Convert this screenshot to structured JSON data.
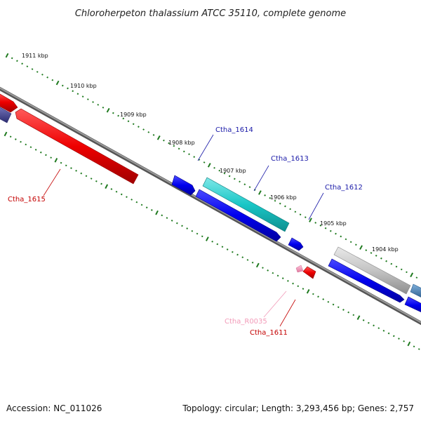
{
  "title": "Chloroherpeton thalassium ATCC 35110, complete genome",
  "accession_text": "Accession: NC_011026",
  "topology_text": "Topology: circular; Length: 3,293,456 bp; Genes: 2,757",
  "scale_labels": [
    "1911 kbp",
    "1910 kbp",
    "1909 kbp",
    "1908 kbp",
    "1907 kbp",
    "1906 kbp",
    "1905 kbp",
    "1904 kbp"
  ],
  "gene_labels": [
    {
      "name": "Ctha_1614",
      "color": "#1a1aa8"
    },
    {
      "name": "Ctha_1613",
      "color": "#1a1aa8"
    },
    {
      "name": "Ctha_1612",
      "color": "#1a1aa8"
    },
    {
      "name": "Ctha_1615",
      "color": "#c40000"
    },
    {
      "name": "Ctha_R0035",
      "color": "#f29ab8"
    },
    {
      "name": "Ctha_1611",
      "color": "#c40000"
    }
  ],
  "colors": {
    "backbone": "#808080",
    "ticks": "#1f7a1f",
    "forward_cds": "#0000ee",
    "reverse_cds": "#ee0000",
    "cyan_feature": "#19c6c6",
    "gray_feature": "#c4c4c4",
    "rna_feature": "#f5a0c0",
    "purple_feature": "#4b4b9a",
    "steel_feature": "#4682b4"
  }
}
